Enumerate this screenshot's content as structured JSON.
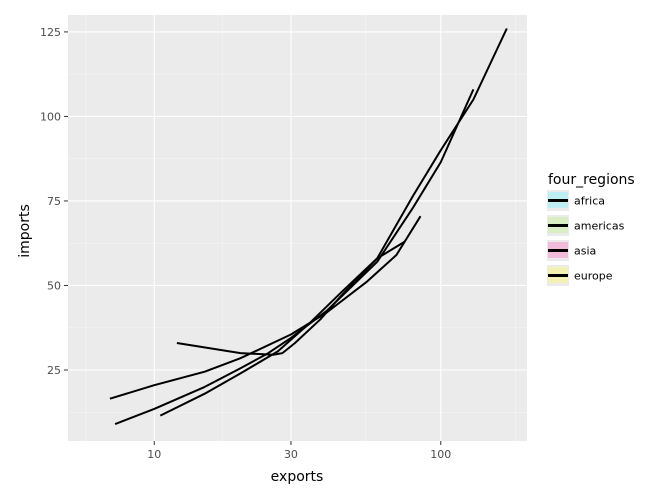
{
  "chart_data": {
    "type": "line",
    "xlabel": "exports",
    "ylabel": "imports",
    "x_scale": "log10",
    "xlim": [
      5,
      200
    ],
    "ylim": [
      4,
      130
    ],
    "x_ticks": [
      10,
      30,
      100
    ],
    "x_tick_labels": [
      "10",
      "30",
      "100"
    ],
    "y_ticks": [
      25,
      50,
      75,
      100,
      125
    ],
    "y_tick_labels": [
      "25",
      "50",
      "75",
      "100",
      "125"
    ],
    "grid": true,
    "legend": {
      "title": "four_regions",
      "placement": "right",
      "entries": [
        {
          "label": "africa",
          "key_color": "#bdeef3"
        },
        {
          "label": "americas",
          "key_color": "#d9eec2"
        },
        {
          "label": "asia",
          "key_color": "#f0bcd9"
        },
        {
          "label": "europe",
          "key_color": "#f3f2b4"
        }
      ]
    },
    "line_color": "#000000",
    "series": [
      {
        "values": [
          [
            7.0,
            16.5
          ],
          [
            10.0,
            20.5
          ],
          [
            15.0,
            24.5
          ],
          [
            20.0,
            28.5
          ],
          [
            30.0,
            35.5
          ],
          [
            40.0,
            42.0
          ],
          [
            55.0,
            51.0
          ],
          [
            70.0,
            59.0
          ],
          [
            85.0,
            70.5
          ]
        ]
      },
      {
        "values": [
          [
            7.3,
            9.0
          ],
          [
            10.0,
            13.5
          ],
          [
            15.0,
            20.0
          ],
          [
            20.0,
            25.5
          ],
          [
            25.0,
            30.0
          ],
          [
            30.0,
            34.5
          ],
          [
            40.0,
            42.5
          ],
          [
            60.0,
            57.0
          ],
          [
            80.0,
            73.0
          ],
          [
            100.0,
            86.5
          ],
          [
            130.0,
            108.0
          ]
        ]
      },
      {
        "values": [
          [
            12.0,
            33.0
          ],
          [
            20.0,
            30.0
          ],
          [
            26.0,
            29.5
          ],
          [
            28.0,
            30.0
          ],
          [
            31.0,
            33.0
          ],
          [
            38.0,
            40.0
          ],
          [
            45.0,
            47.0
          ],
          [
            60.0,
            58.0
          ],
          [
            75.0,
            63.0
          ]
        ]
      },
      {
        "values": [
          [
            10.5,
            11.5
          ],
          [
            15.0,
            18.0
          ],
          [
            20.0,
            24.0
          ],
          [
            27.0,
            30.5
          ],
          [
            35.0,
            39.0
          ],
          [
            45.0,
            48.0
          ],
          [
            60.0,
            58.0
          ],
          [
            80.0,
            76.5
          ],
          [
            100.0,
            90.0
          ],
          [
            130.0,
            105.0
          ],
          [
            170.0,
            126.0
          ]
        ]
      }
    ]
  }
}
